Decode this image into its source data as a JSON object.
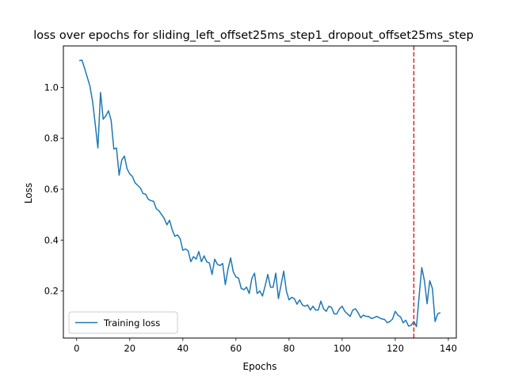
{
  "chart_data": {
    "type": "line",
    "title": "loss over epochs for sliding_left_offset25ms_step1_dropout_offset25ms_step",
    "xlabel": "Epochs",
    "ylabel": "Loss",
    "xlim": [
      -5,
      143
    ],
    "ylim": [
      0.015,
      1.163
    ],
    "xticks": [
      0,
      20,
      40,
      60,
      80,
      100,
      120,
      140
    ],
    "yticks": [
      0.2,
      0.4,
      0.6,
      0.8,
      1.0
    ],
    "xtick_labels": [
      "0",
      "20",
      "40",
      "60",
      "80",
      "100",
      "120",
      "140"
    ],
    "ytick_labels": [
      "0.2",
      "0.4",
      "0.6",
      "0.8",
      "1.0"
    ],
    "grid": false,
    "legend_position": "lower-left",
    "series": [
      {
        "name": "Training loss",
        "color": "#1f77b4",
        "x": [
          1,
          2,
          3,
          4,
          5,
          6,
          7,
          8,
          9,
          10,
          11,
          12,
          13,
          14,
          15,
          16,
          17,
          18,
          19,
          20,
          21,
          22,
          23,
          24,
          25,
          26,
          27,
          28,
          29,
          30,
          31,
          32,
          33,
          34,
          35,
          36,
          37,
          38,
          39,
          40,
          41,
          42,
          43,
          44,
          45,
          46,
          47,
          48,
          49,
          50,
          51,
          52,
          53,
          54,
          55,
          56,
          57,
          58,
          59,
          60,
          61,
          62,
          63,
          64,
          65,
          66,
          67,
          68,
          69,
          70,
          71,
          72,
          73,
          74,
          75,
          76,
          77,
          78,
          79,
          80,
          81,
          82,
          83,
          84,
          85,
          86,
          87,
          88,
          89,
          90,
          91,
          92,
          93,
          94,
          95,
          96,
          97,
          98,
          99,
          100,
          101,
          102,
          103,
          104,
          105,
          106,
          107,
          108,
          109,
          110,
          111,
          112,
          113,
          114,
          115,
          116,
          117,
          118,
          119,
          120,
          121,
          122,
          123,
          124,
          125,
          126,
          127,
          128,
          129,
          130,
          131,
          132,
          133,
          134,
          135,
          136,
          137
        ],
        "y": [
          1.105,
          1.107,
          1.075,
          1.04,
          1.005,
          0.945,
          0.855,
          0.762,
          0.98,
          0.875,
          0.888,
          0.908,
          0.87,
          0.758,
          0.762,
          0.655,
          0.715,
          0.73,
          0.68,
          0.66,
          0.65,
          0.625,
          0.615,
          0.605,
          0.583,
          0.58,
          0.56,
          0.555,
          0.552,
          0.523,
          0.515,
          0.5,
          0.485,
          0.46,
          0.478,
          0.44,
          0.415,
          0.42,
          0.405,
          0.36,
          0.365,
          0.358,
          0.315,
          0.335,
          0.325,
          0.355,
          0.315,
          0.338,
          0.315,
          0.31,
          0.265,
          0.325,
          0.305,
          0.3,
          0.308,
          0.225,
          0.285,
          0.33,
          0.275,
          0.255,
          0.25,
          0.21,
          0.205,
          0.215,
          0.19,
          0.25,
          0.27,
          0.19,
          0.2,
          0.18,
          0.22,
          0.265,
          0.215,
          0.215,
          0.27,
          0.17,
          0.225,
          0.278,
          0.2,
          0.165,
          0.175,
          0.17,
          0.148,
          0.165,
          0.145,
          0.14,
          0.145,
          0.125,
          0.14,
          0.125,
          0.125,
          0.16,
          0.13,
          0.12,
          0.14,
          0.135,
          0.11,
          0.11,
          0.13,
          0.14,
          0.12,
          0.11,
          0.1,
          0.125,
          0.13,
          0.115,
          0.095,
          0.105,
          0.1,
          0.1,
          0.092,
          0.095,
          0.1,
          0.095,
          0.09,
          0.088,
          0.075,
          0.08,
          0.09,
          0.12,
          0.105,
          0.098,
          0.075,
          0.085,
          0.062,
          0.065,
          0.08,
          0.06,
          0.18,
          0.292,
          0.24,
          0.15,
          0.24,
          0.21,
          0.08,
          0.11,
          0.115
        ]
      }
    ],
    "vline": {
      "x": 127,
      "color": "#d62728",
      "style": "dashed"
    }
  }
}
